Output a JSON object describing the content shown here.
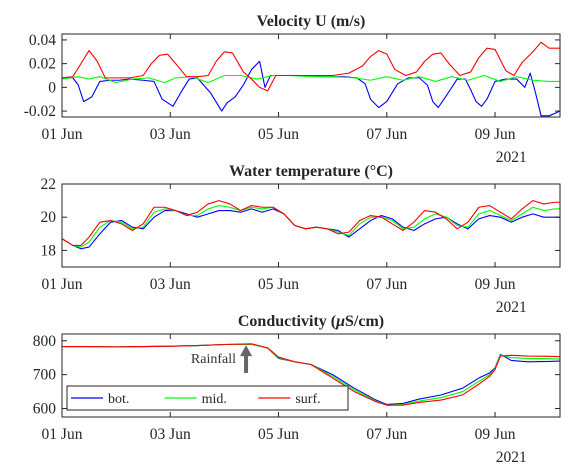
{
  "chart_data": [
    {
      "type": "line",
      "title": "Velocity U (m/s)",
      "xlabel": "",
      "ylabel": "",
      "x_unit": "day of June 2021",
      "xlim": [
        1,
        10.2
      ],
      "ylim": [
        -0.025,
        0.045
      ],
      "x_ticks": [
        1,
        3,
        5,
        7,
        9
      ],
      "x_tick_labels": [
        "01 Jun",
        "03 Jun",
        "05 Jun",
        "07 Jun",
        "09 Jun"
      ],
      "y_ticks": [
        -0.02,
        0,
        0.02,
        0.04
      ],
      "y_tick_labels": [
        "-0.02",
        "0",
        "0.02",
        "0.04"
      ],
      "year_label": "2021",
      "grid": false,
      "series": [
        {
          "name": "bot.",
          "color": "#0000ff",
          "x": [
            1,
            1.2,
            1.3,
            1.4,
            1.55,
            1.7,
            1.9,
            2.05,
            2.25,
            2.5,
            2.7,
            2.85,
            3.05,
            3.2,
            3.35,
            3.5,
            3.75,
            3.95,
            4.05,
            4.2,
            4.35,
            4.5,
            4.65,
            4.75,
            4.85,
            5.0,
            5.2,
            5.4,
            5.6,
            5.8,
            6.0,
            6.2,
            6.45,
            6.6,
            6.7,
            6.85,
            7.0,
            7.2,
            7.4,
            7.6,
            7.75,
            7.85,
            7.95,
            8.1,
            8.3,
            8.45,
            8.55,
            8.65,
            8.75,
            8.85,
            9.0,
            9.2,
            9.4,
            9.55,
            9.65,
            9.75,
            9.85,
            10.0,
            10.2
          ],
          "y": [
            0.008,
            0.008,
            0.002,
            -0.012,
            -0.008,
            0.005,
            0.006,
            0.006,
            0.007,
            0.006,
            0.005,
            -0.01,
            -0.016,
            -0.004,
            0.007,
            0.008,
            -0.005,
            -0.02,
            -0.013,
            -0.008,
            0.002,
            0.015,
            0.022,
            0.0,
            0.01,
            0.01,
            0.01,
            0.01,
            0.01,
            0.009,
            0.009,
            0.009,
            0.008,
            0.003,
            -0.01,
            -0.017,
            -0.012,
            0.003,
            0.008,
            0.008,
            0.002,
            -0.012,
            -0.017,
            -0.007,
            0.007,
            0.007,
            -0.002,
            -0.012,
            -0.016,
            -0.01,
            0.005,
            0.007,
            0.007,
            0.0,
            0.012,
            -0.005,
            -0.024,
            -0.024,
            -0.02
          ]
        },
        {
          "name": "mid.",
          "color": "#00ff00",
          "x": [
            1,
            1.3,
            1.5,
            1.7,
            2.0,
            2.3,
            2.6,
            2.9,
            3.1,
            3.4,
            3.7,
            4.0,
            4.3,
            4.6,
            4.9,
            5.2,
            5.6,
            6.0,
            6.4,
            6.7,
            7.0,
            7.3,
            7.6,
            7.9,
            8.2,
            8.5,
            8.8,
            9.1,
            9.4,
            9.7,
            10.0,
            10.2
          ],
          "y": [
            0.007,
            0.009,
            0.007,
            0.009,
            0.004,
            0.007,
            0.008,
            0.004,
            0.008,
            0.009,
            0.004,
            0.01,
            0.01,
            0.007,
            0.01,
            0.01,
            0.009,
            0.009,
            0.008,
            0.006,
            0.009,
            0.006,
            0.009,
            0.005,
            0.009,
            0.006,
            0.01,
            0.005,
            0.009,
            0.006,
            0.005,
            0.005
          ]
        },
        {
          "name": "surf.",
          "color": "#ff0000",
          "x": [
            1,
            1.2,
            1.35,
            1.5,
            1.65,
            1.8,
            2.0,
            2.25,
            2.5,
            2.65,
            2.8,
            2.95,
            3.1,
            3.3,
            3.5,
            3.7,
            3.85,
            4.0,
            4.15,
            4.35,
            4.5,
            4.65,
            4.8,
            4.95,
            5.1,
            5.3,
            5.6,
            6.0,
            6.3,
            6.55,
            6.7,
            6.85,
            7.0,
            7.15,
            7.35,
            7.55,
            7.7,
            7.85,
            8.0,
            8.15,
            8.35,
            8.55,
            8.7,
            8.85,
            9.0,
            9.2,
            9.35,
            9.5,
            9.7,
            9.85,
            10.0,
            10.2
          ],
          "y": [
            0.008,
            0.009,
            0.02,
            0.031,
            0.022,
            0.008,
            0.008,
            0.008,
            0.01,
            0.02,
            0.027,
            0.028,
            0.02,
            0.009,
            0.009,
            0.01,
            0.022,
            0.03,
            0.029,
            0.013,
            0.007,
            0.0,
            -0.003,
            0.01,
            0.01,
            0.01,
            0.01,
            0.01,
            0.012,
            0.018,
            0.026,
            0.031,
            0.028,
            0.015,
            0.01,
            0.013,
            0.022,
            0.028,
            0.029,
            0.02,
            0.01,
            0.013,
            0.025,
            0.033,
            0.032,
            0.014,
            0.01,
            0.021,
            0.03,
            0.038,
            0.033,
            0.033
          ]
        }
      ]
    },
    {
      "type": "line",
      "title": "Water temperature (°C)",
      "xlabel": "",
      "ylabel": "",
      "x_unit": "day of June 2021",
      "xlim": [
        1,
        10.2
      ],
      "ylim": [
        17,
        22
      ],
      "x_ticks": [
        1,
        3,
        5,
        7,
        9
      ],
      "x_tick_labels": [
        "01 Jun",
        "03 Jun",
        "05 Jun",
        "07 Jun",
        "09 Jun"
      ],
      "y_ticks": [
        18,
        20,
        22
      ],
      "y_tick_labels": [
        "18",
        "20",
        "22"
      ],
      "year_label": "2021",
      "grid": false,
      "series": [
        {
          "name": "bot.",
          "color": "#0000ff",
          "x": [
            1,
            1.2,
            1.35,
            1.5,
            1.7,
            1.9,
            2.1,
            2.3,
            2.5,
            2.7,
            2.9,
            3.1,
            3.3,
            3.5,
            3.7,
            3.9,
            4.1,
            4.3,
            4.5,
            4.7,
            4.9,
            5.1,
            5.3,
            5.5,
            5.7,
            5.9,
            6.1,
            6.3,
            6.5,
            6.7,
            6.9,
            7.1,
            7.3,
            7.5,
            7.7,
            7.9,
            8.1,
            8.3,
            8.5,
            8.7,
            8.9,
            9.1,
            9.3,
            9.5,
            9.7,
            9.9,
            10.1,
            10.2
          ],
          "y": [
            18.7,
            18.3,
            18.1,
            18.2,
            19.0,
            19.7,
            19.8,
            19.4,
            19.3,
            20.0,
            20.4,
            20.4,
            20.2,
            20.0,
            20.2,
            20.4,
            20.4,
            20.3,
            20.5,
            20.3,
            20.5,
            20.2,
            19.5,
            19.3,
            19.4,
            19.3,
            19.2,
            18.8,
            19.3,
            19.8,
            20.1,
            19.9,
            19.4,
            19.2,
            19.6,
            19.9,
            20.0,
            19.6,
            19.3,
            19.9,
            20.1,
            20.0,
            19.7,
            20.0,
            20.2,
            20.0,
            20.0,
            20.0
          ]
        },
        {
          "name": "mid.",
          "color": "#00ff00",
          "x": [
            1,
            1.2,
            1.35,
            1.5,
            1.7,
            1.9,
            2.1,
            2.3,
            2.5,
            2.7,
            2.9,
            3.1,
            3.3,
            3.5,
            3.7,
            3.9,
            4.1,
            4.3,
            4.5,
            4.7,
            4.9,
            5.1,
            5.3,
            5.5,
            5.7,
            5.9,
            6.1,
            6.3,
            6.5,
            6.7,
            6.9,
            7.1,
            7.3,
            7.5,
            7.7,
            7.9,
            8.1,
            8.3,
            8.5,
            8.7,
            8.9,
            9.1,
            9.3,
            9.5,
            9.7,
            9.9,
            10.1,
            10.2
          ],
          "y": [
            18.7,
            18.3,
            18.2,
            18.5,
            19.4,
            19.8,
            19.7,
            19.3,
            19.4,
            20.3,
            20.5,
            20.4,
            20.1,
            20.1,
            20.5,
            20.7,
            20.6,
            20.4,
            20.6,
            20.5,
            20.6,
            20.2,
            19.5,
            19.3,
            19.4,
            19.3,
            19.1,
            18.9,
            19.6,
            20.0,
            20.0,
            19.8,
            19.3,
            19.4,
            19.9,
            20.2,
            20.0,
            19.5,
            19.4,
            20.2,
            20.4,
            20.1,
            19.8,
            20.2,
            20.6,
            20.4,
            20.5,
            20.5
          ]
        },
        {
          "name": "surf.",
          "color": "#ff0000",
          "x": [
            1,
            1.2,
            1.35,
            1.5,
            1.7,
            1.9,
            2.1,
            2.3,
            2.5,
            2.7,
            2.9,
            3.1,
            3.3,
            3.5,
            3.7,
            3.9,
            4.1,
            4.3,
            4.5,
            4.7,
            4.9,
            5.1,
            5.3,
            5.5,
            5.7,
            5.9,
            6.1,
            6.3,
            6.5,
            6.7,
            6.9,
            7.1,
            7.3,
            7.5,
            7.7,
            7.9,
            8.1,
            8.3,
            8.5,
            8.7,
            8.9,
            9.1,
            9.3,
            9.5,
            9.7,
            9.9,
            10.1,
            10.2
          ],
          "y": [
            18.7,
            18.3,
            18.3,
            18.8,
            19.7,
            19.8,
            19.6,
            19.2,
            19.6,
            20.6,
            20.6,
            20.4,
            20.1,
            20.3,
            20.8,
            21.0,
            20.8,
            20.4,
            20.7,
            20.6,
            20.6,
            20.2,
            19.5,
            19.3,
            19.4,
            19.3,
            19.0,
            19.1,
            19.8,
            20.1,
            20.0,
            19.6,
            19.2,
            19.7,
            20.4,
            20.3,
            19.9,
            19.3,
            19.7,
            20.6,
            20.7,
            20.3,
            19.9,
            20.5,
            21.0,
            20.8,
            20.9,
            20.9
          ]
        }
      ]
    },
    {
      "type": "line",
      "title": "Conductivity (μS/cm)",
      "title_prefix": "Conductivity (",
      "title_mu": "μ",
      "title_suffix": "S/cm)",
      "xlabel": "",
      "ylabel": "",
      "x_unit": "day of June 2021",
      "xlim": [
        1,
        10.2
      ],
      "ylim": [
        575,
        820
      ],
      "x_ticks": [
        1,
        3,
        5,
        7,
        9
      ],
      "x_tick_labels": [
        "01 Jun",
        "03 Jun",
        "05 Jun",
        "07 Jun",
        "09 Jun"
      ],
      "y_ticks": [
        600,
        700,
        800
      ],
      "y_tick_labels": [
        "600",
        "700",
        "800"
      ],
      "year_label": "2021",
      "grid": false,
      "legend": {
        "placement": "bottom-left",
        "labels": [
          "bot.",
          "mid.",
          "surf."
        ]
      },
      "annotations": [
        {
          "text": "Rainfall",
          "x": 4.4,
          "y_from": 705,
          "y_to": 787,
          "color": "#666666"
        }
      ],
      "series": [
        {
          "name": "bot.",
          "color": "#0000ff",
          "x": [
            1,
            1.5,
            2,
            2.5,
            3,
            3.5,
            4,
            4.5,
            4.8,
            5.0,
            5.3,
            5.6,
            6.0,
            6.4,
            6.8,
            7.0,
            7.3,
            7.6,
            8.0,
            8.4,
            8.7,
            8.9,
            9.0,
            9.1,
            9.3,
            9.6,
            10.0,
            10.2
          ],
          "y": [
            783,
            783,
            782,
            783,
            784,
            786,
            789,
            790,
            778,
            748,
            738,
            730,
            700,
            660,
            625,
            612,
            615,
            628,
            640,
            660,
            690,
            705,
            720,
            760,
            742,
            738,
            739,
            740
          ]
        },
        {
          "name": "mid.",
          "color": "#00ff00",
          "x": [
            1,
            1.5,
            2,
            2.5,
            3,
            3.5,
            4,
            4.5,
            4.8,
            5.0,
            5.3,
            5.6,
            6.0,
            6.4,
            6.8,
            7.0,
            7.3,
            7.6,
            8.0,
            8.4,
            8.7,
            8.9,
            9.0,
            9.1,
            9.3,
            9.6,
            10.0,
            10.2
          ],
          "y": [
            783,
            783,
            782,
            783,
            784,
            786,
            789,
            790,
            778,
            750,
            738,
            730,
            695,
            655,
            622,
            610,
            612,
            622,
            632,
            650,
            680,
            700,
            718,
            758,
            750,
            748,
            747,
            746
          ]
        },
        {
          "name": "surf.",
          "color": "#ff0000",
          "x": [
            1,
            1.5,
            2,
            2.5,
            3,
            3.5,
            4,
            4.5,
            4.8,
            5.0,
            5.3,
            5.6,
            6.0,
            6.4,
            6.8,
            7.0,
            7.3,
            7.6,
            8.0,
            8.4,
            8.7,
            8.9,
            9.0,
            9.1,
            9.3,
            9.6,
            10.0,
            10.2
          ],
          "y": [
            783,
            783,
            782,
            783,
            784,
            786,
            789,
            791,
            779,
            752,
            738,
            730,
            690,
            650,
            620,
            610,
            610,
            618,
            625,
            640,
            672,
            695,
            715,
            755,
            757,
            755,
            754,
            753
          ]
        }
      ]
    }
  ]
}
